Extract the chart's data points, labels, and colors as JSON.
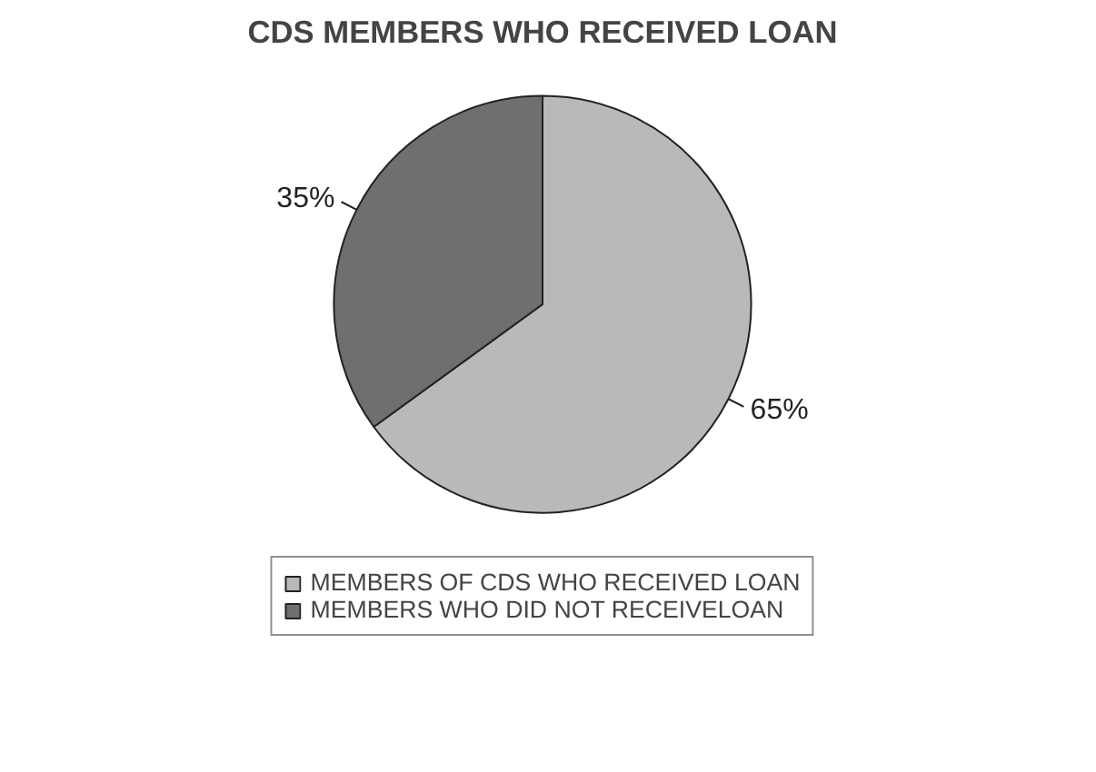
{
  "chart_data": {
    "type": "pie",
    "title": "CDS MEMBERS WHO RECEIVED LOAN",
    "categories": [
      "MEMBERS OF CDS WHO RECEIVED LOAN",
      "MEMBERS WHO DID NOT RECEIVELOAN"
    ],
    "values": [
      65,
      35
    ],
    "colors": [
      "#b9b9b9",
      "#6f6f6f"
    ],
    "value_labels": [
      "65%",
      "35%"
    ],
    "legend": "bottom"
  }
}
